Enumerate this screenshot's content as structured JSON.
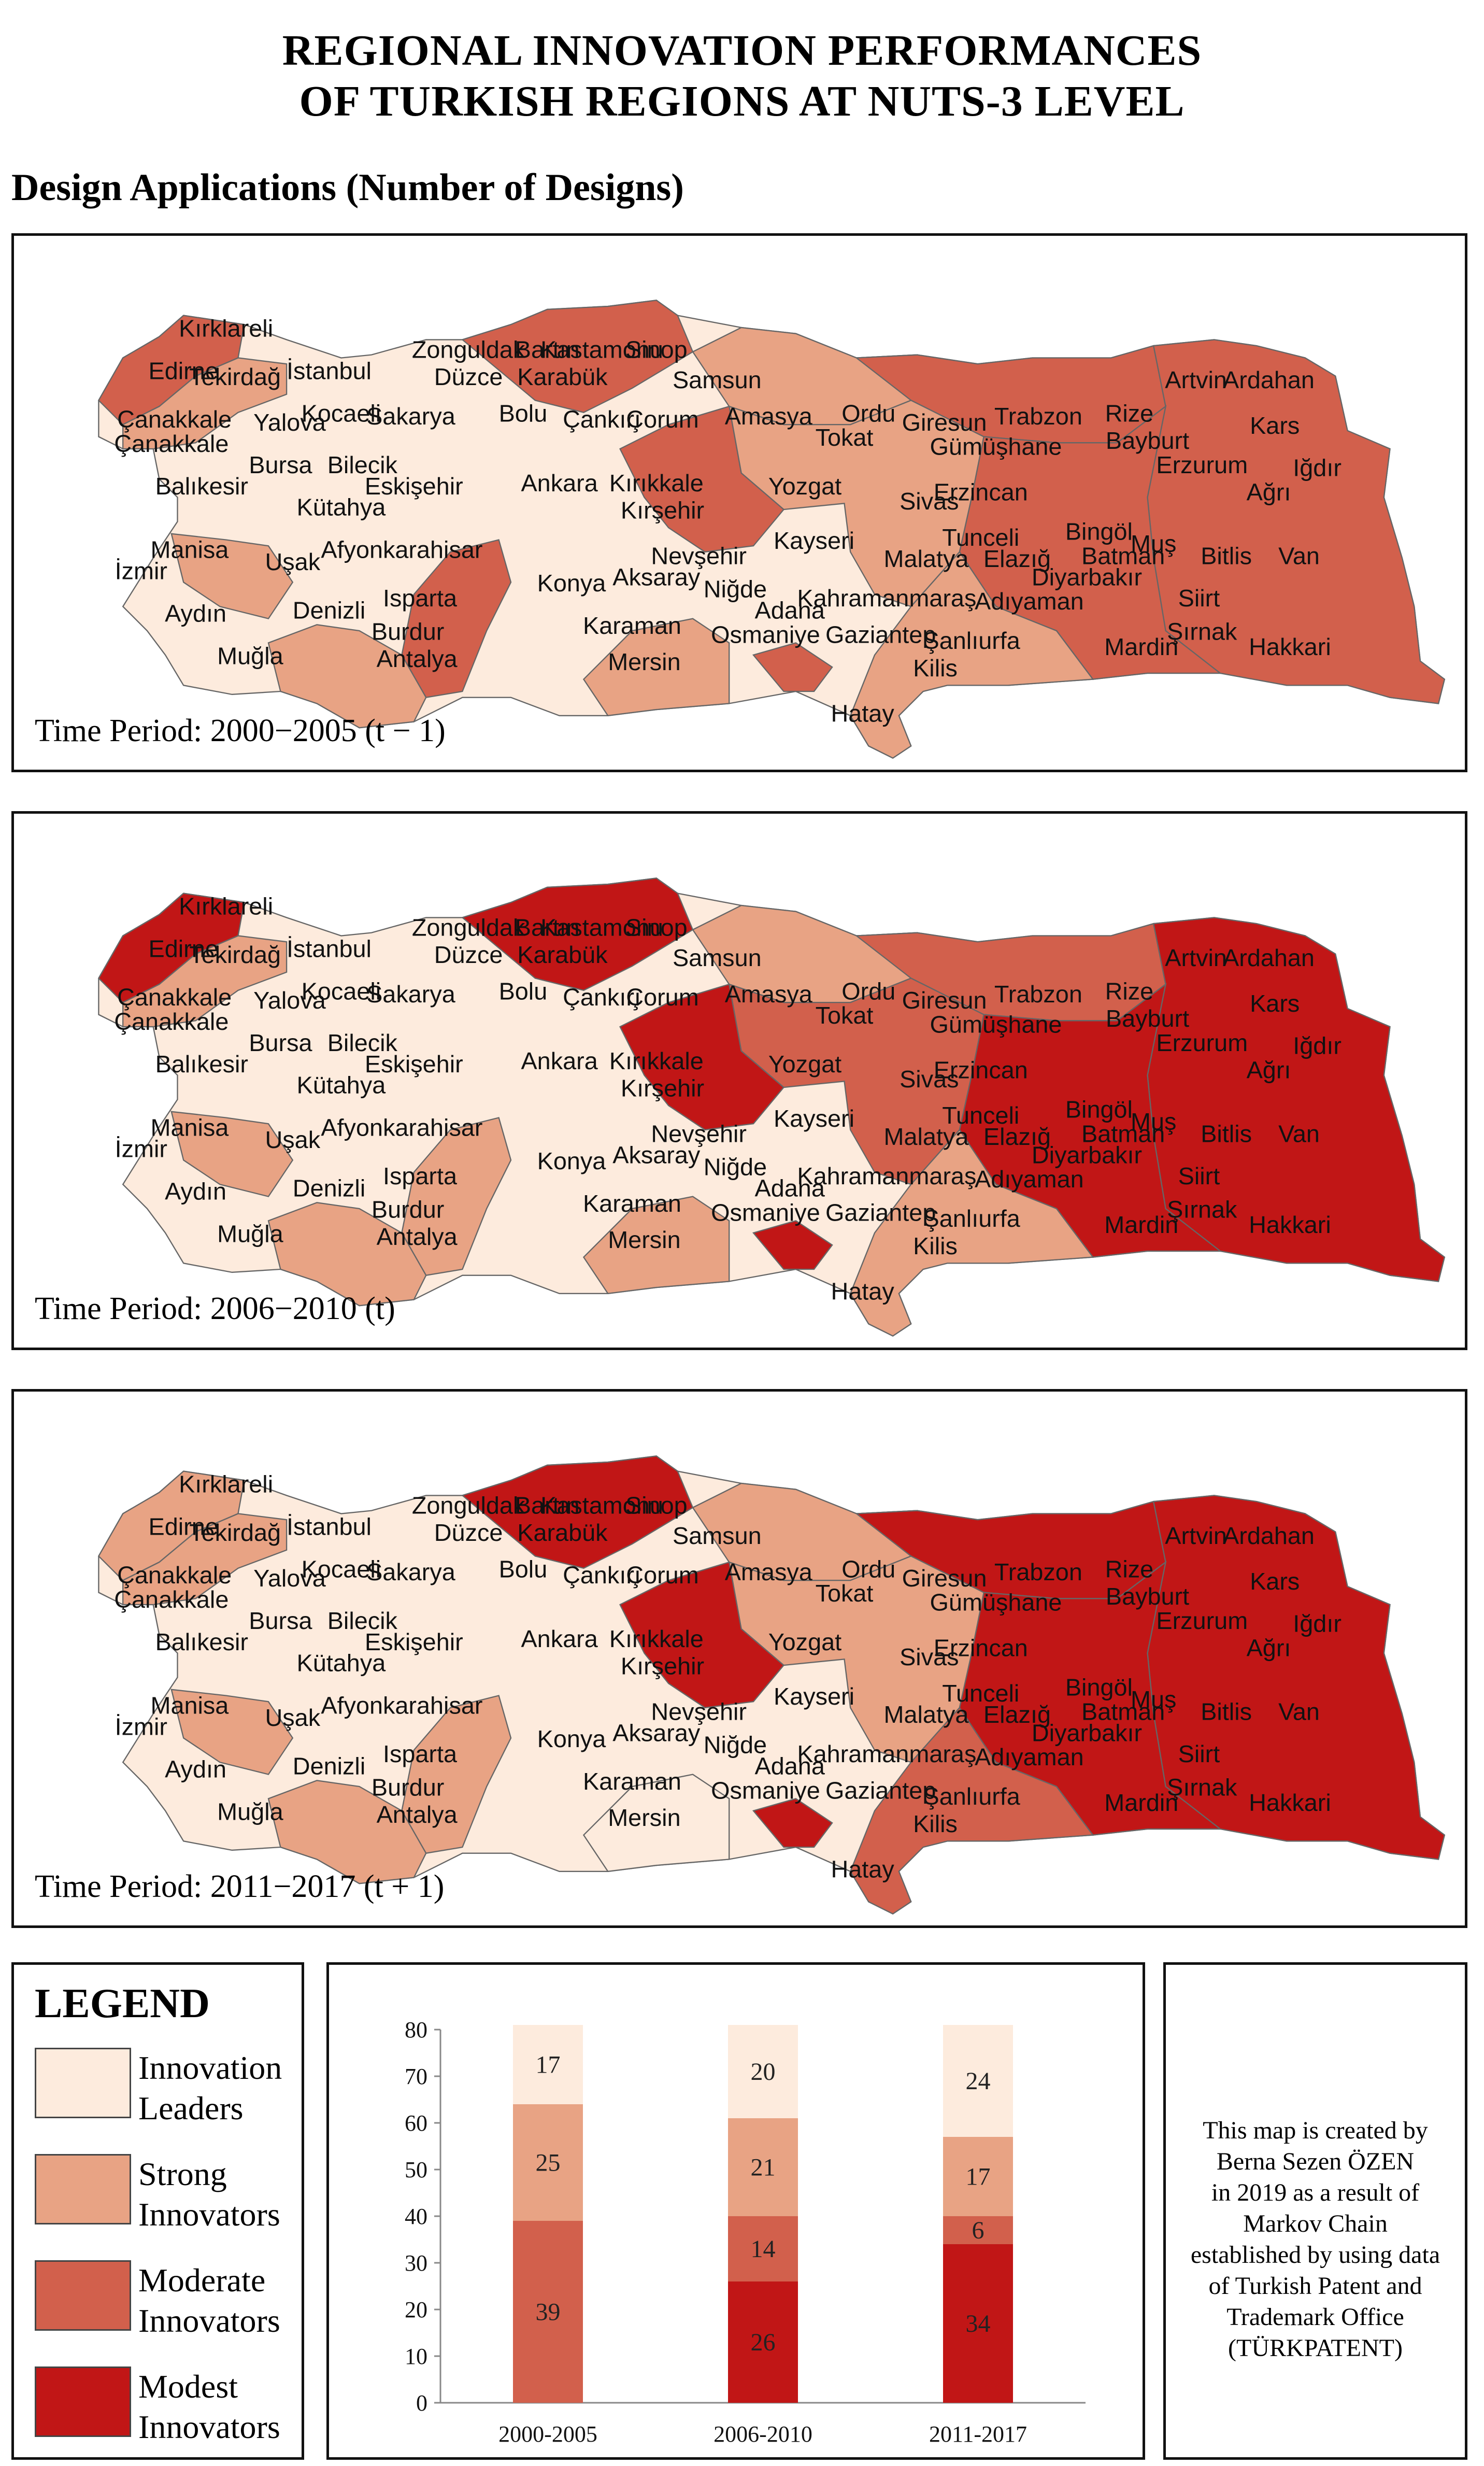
{
  "title_line1": "REGIONAL INNOVATION PERFORMANCES",
  "title_line2": "OF TURKISH REGIONS AT NUTS-3 LEVEL",
  "subtitle": "Design Applications (Number of Designs)",
  "colors": {
    "leaders": "#fdebdd",
    "strong": "#e8a384",
    "moderate": "#d2604c",
    "modest": "#c11616"
  },
  "panels": [
    {
      "period": "Time Period: 2000−2005 (t − 1)"
    },
    {
      "period": "Time Period: 2006−2010 (t)"
    },
    {
      "period": "Time Period: 2011−2017 (t + 1)"
    }
  ],
  "provinces": [
    "Kırklareli",
    "Edirne",
    "Tekirdağ",
    "İstanbul",
    "Çanakkale",
    "Çanakkale",
    "Yalova",
    "Kocaeli",
    "Sakarya",
    "Zonguldak",
    "Düzce",
    "Bartın",
    "Karabük",
    "Kastamonu",
    "Sinop",
    "Bolu",
    "Samsun",
    "Çankırı",
    "Çorum",
    "Amasya",
    "Ordu",
    "Giresun",
    "Trabzon",
    "Rize",
    "Artvin",
    "Ardahan",
    "Kars",
    "Iğdır",
    "Ağrı",
    "Erzurum",
    "Bayburt",
    "Gümüşhane",
    "Tokat",
    "Erzincan",
    "Tunceli",
    "Bingöl",
    "Muş",
    "Bitlis",
    "Van",
    "Siirt",
    "Batman",
    "Şırnak",
    "Hakkari",
    "Mardin",
    "Diyarbakır",
    "Elazığ",
    "Malatya",
    "Adıyaman",
    "Şanlıurfa",
    "Gaziantep",
    "Kilis",
    "Hatay",
    "Osmaniye",
    "Adana",
    "Kahramanmaraş",
    "Kayseri",
    "Sivas",
    "Yozgat",
    "Kırıkkale",
    "Kırşehir",
    "Nevşehir",
    "Niğde",
    "Aksaray",
    "Ankara",
    "Konya",
    "Karaman",
    "Mersin",
    "Antalya",
    "Isparta",
    "Burdur",
    "Muğla",
    "Denizli",
    "Aydın",
    "İzmir",
    "Manisa",
    "Uşak",
    "Afyonkarahisar",
    "Kütahya",
    "Eskişehir",
    "Bilecik",
    "Bursa",
    "Balıkesir"
  ],
  "legend": {
    "title": "LEGEND",
    "items": [
      {
        "line1": "Innovation",
        "line2": "Leaders"
      },
      {
        "line1": "Strong",
        "line2": "Innovators"
      },
      {
        "line1": "Moderate",
        "line2": "Innovators"
      },
      {
        "line1": "Modest",
        "line2": "Innovators"
      }
    ]
  },
  "note_lines": [
    "This map is created by",
    "Berna Sezen ÖZEN",
    "in 2019 as a result of",
    "Markov Chain",
    "established by using data",
    "of Turkish Patent and",
    "Trademark Office",
    "(TÜRKPATENT)"
  ],
  "chart_data": {
    "type": "bar",
    "stacked": true,
    "categories": [
      "2000-2005",
      "2006-2010",
      "2011-2017"
    ],
    "ylim": [
      0,
      80
    ],
    "yticks": [
      0,
      10,
      20,
      30,
      40,
      50,
      60,
      70,
      80
    ],
    "series": [
      {
        "name": "Modest Innovators",
        "values": [
          0,
          26,
          34
        ]
      },
      {
        "name": "Moderate Innovators",
        "values": [
          39,
          14,
          6
        ]
      },
      {
        "name": "Strong Innovators",
        "values": [
          25,
          21,
          17
        ]
      },
      {
        "name": "Innovation Leaders",
        "values": [
          17,
          20,
          24
        ]
      }
    ]
  }
}
